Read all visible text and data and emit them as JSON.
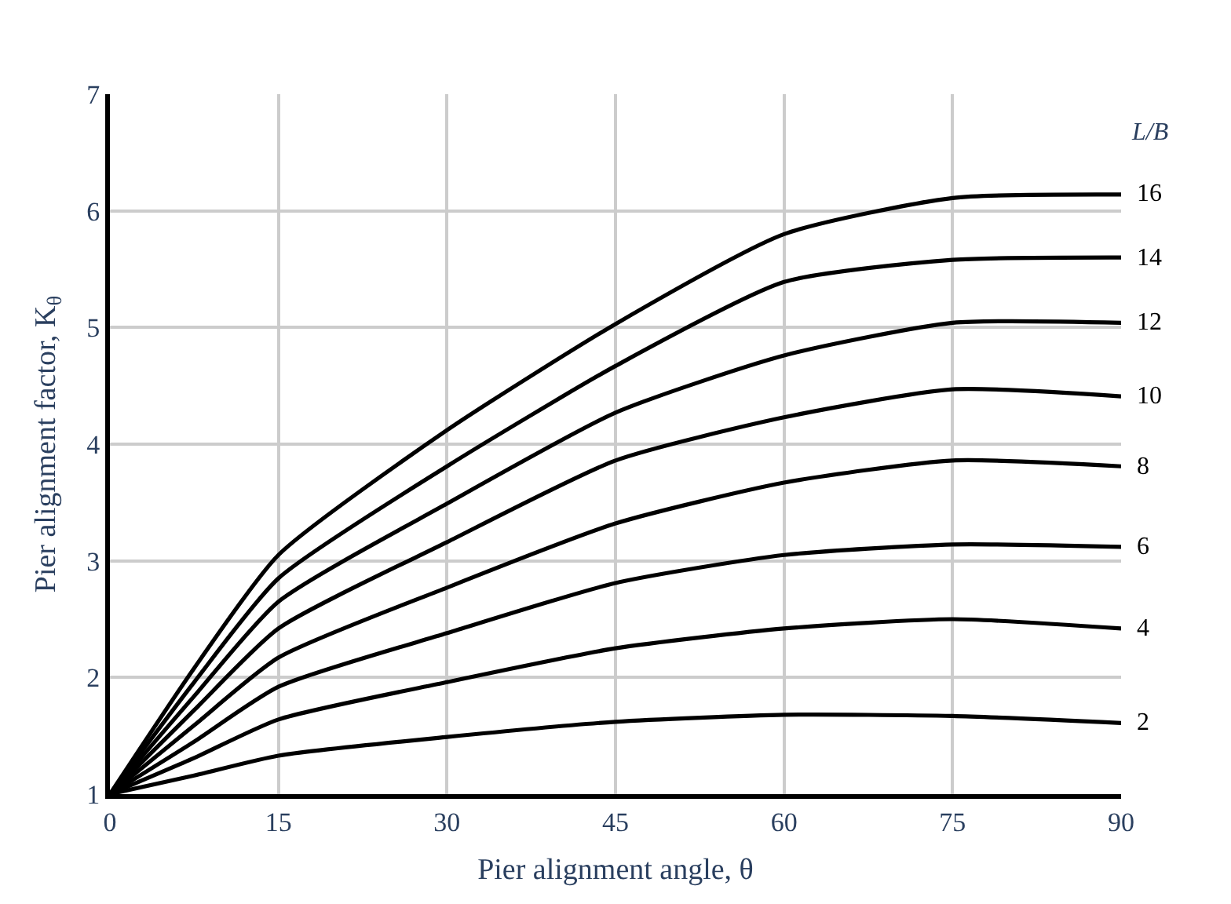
{
  "chart_data": {
    "type": "line",
    "xlabel": "Pier alignment angle, θ",
    "ylabel": "Pier alignment factor, K$_{θ}$",
    "x": [
      0,
      7.5,
      15,
      30,
      45,
      60,
      75,
      90
    ],
    "series": [
      {
        "name": "16",
        "color": "#000000",
        "values": [
          1,
          2.08,
          3.05,
          4.12,
          5.03,
          5.8,
          6.11,
          6.14
        ]
      },
      {
        "name": "14",
        "color": "#000000",
        "values": [
          1,
          1.96,
          2.85,
          3.81,
          4.67,
          5.39,
          5.58,
          5.6
        ]
      },
      {
        "name": "12",
        "color": "#000000",
        "values": [
          1,
          1.84,
          2.65,
          3.49,
          4.27,
          4.76,
          5.04,
          5.04
        ]
      },
      {
        "name": "10",
        "color": "#000000",
        "values": [
          1,
          1.72,
          2.42,
          3.16,
          3.86,
          4.23,
          4.47,
          4.41
        ]
      },
      {
        "name": "8",
        "color": "#000000",
        "values": [
          1,
          1.59,
          2.17,
          2.77,
          3.32,
          3.67,
          3.86,
          3.81
        ]
      },
      {
        "name": "6",
        "color": "#000000",
        "values": [
          1,
          1.45,
          1.92,
          2.38,
          2.81,
          3.05,
          3.14,
          3.12
        ]
      },
      {
        "name": "4",
        "color": "#000000",
        "values": [
          1,
          1.31,
          1.64,
          1.96,
          2.25,
          2.42,
          2.5,
          2.42
        ]
      },
      {
        "name": "2",
        "color": "#000000",
        "values": [
          1,
          1.16,
          1.33,
          1.49,
          1.62,
          1.68,
          1.67,
          1.61
        ]
      }
    ],
    "annotations": [
      "L/B"
    ],
    "xlim": [
      0,
      90
    ],
    "xticks": [
      0,
      15,
      30,
      45,
      60,
      75,
      90
    ],
    "ylim": [
      1,
      7
    ],
    "yticks": [
      1,
      2,
      3,
      4,
      5,
      6,
      7
    ],
    "grid": true,
    "legend": false,
    "marker": "none",
    "line_style": "solid"
  }
}
